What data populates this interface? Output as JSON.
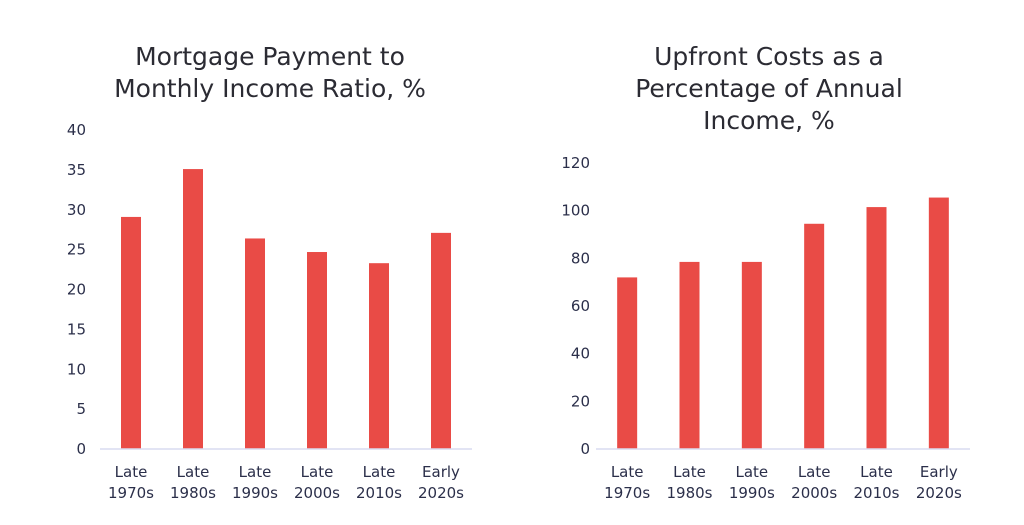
{
  "chart_data": [
    {
      "type": "bar",
      "title_lines": [
        "Mortgage Payment to",
        "Monthly Income Ratio, %"
      ],
      "categories": [
        [
          "Late",
          "1970s"
        ],
        [
          "Late",
          "1980s"
        ],
        [
          "Late",
          "1990s"
        ],
        [
          "Late",
          "2000s"
        ],
        [
          "Late",
          "2010s"
        ],
        [
          "Early",
          "2020s"
        ]
      ],
      "values": [
        29.1,
        35.1,
        26.4,
        24.7,
        23.3,
        27.1
      ],
      "ylim": [
        0,
        40
      ],
      "yticks": [
        0,
        5,
        10,
        15,
        20,
        25,
        30,
        35,
        40
      ],
      "bar_color": "#e94b46",
      "grid": false
    },
    {
      "type": "bar",
      "title_lines": [
        "Upfront Costs as a",
        "Percentage of Annual",
        "Income, %"
      ],
      "categories": [
        [
          "Late",
          "1970s"
        ],
        [
          "Late",
          "1980s"
        ],
        [
          "Late",
          "1990s"
        ],
        [
          "Late",
          "2000s"
        ],
        [
          "Late",
          "2010s"
        ],
        [
          "Early",
          "2020s"
        ]
      ],
      "values": [
        72,
        78.5,
        78.5,
        94.5,
        101.5,
        105.5
      ],
      "ylim": [
        0,
        120
      ],
      "yticks": [
        0,
        20,
        40,
        60,
        80,
        100,
        120
      ],
      "bar_color": "#e94b46",
      "grid": false
    }
  ]
}
